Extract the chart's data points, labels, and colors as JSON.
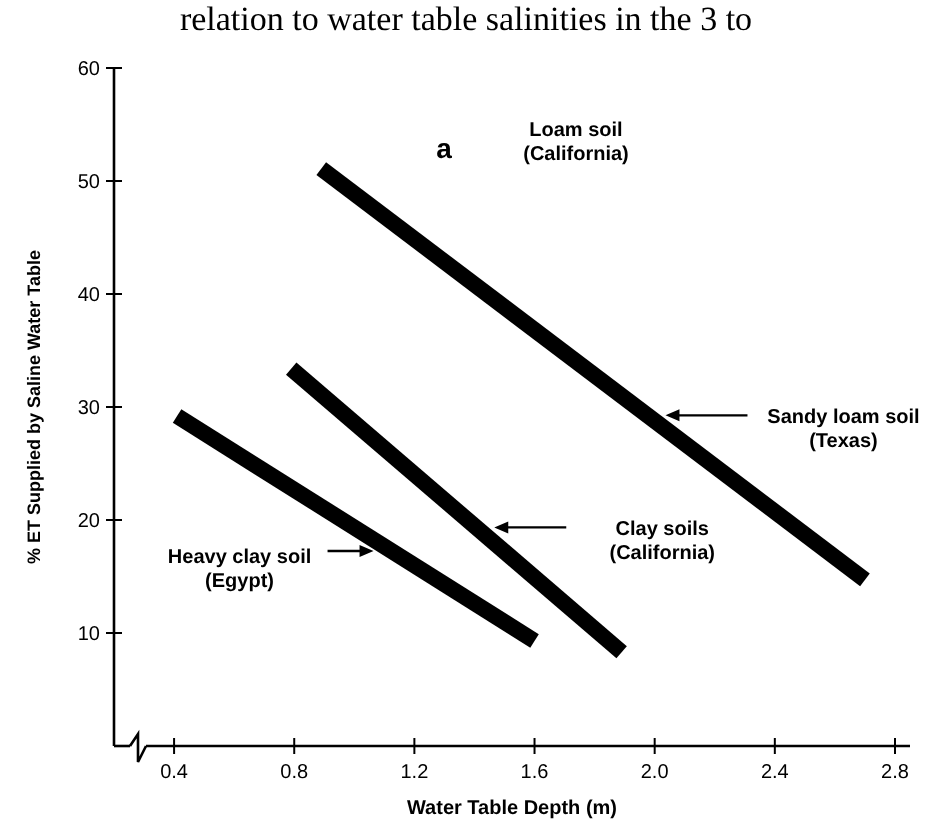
{
  "chart_data": {
    "type": "line",
    "title": "relation to water table salinities in the 3 to",
    "xlabel": "Water Table Depth (m)",
    "ylabel": "% ET Supplied by Saline Water Table",
    "xlim": [
      0.2,
      2.85
    ],
    "ylim": [
      0,
      60
    ],
    "xticks": [
      {
        "value": 0.4,
        "label": "0.4"
      },
      {
        "value": 0.8,
        "label": "0.8"
      },
      {
        "value": 1.2,
        "label": "1.2"
      },
      {
        "value": 1.6,
        "label": "1.6"
      },
      {
        "value": 2.0,
        "label": "2.0"
      },
      {
        "value": 2.4,
        "label": "2.4"
      },
      {
        "value": 2.8,
        "label": "2.8"
      }
    ],
    "yticks": [
      10,
      20,
      30,
      40,
      50,
      60
    ],
    "grid": false,
    "legend": "right",
    "marker": "none",
    "line_style": "solid",
    "annotations": [
      "a",
      "Loam soil\n(California)"
    ],
    "series": [
      {
        "name": "Sandy loam soil\n(Texas)",
        "color": "#000000",
        "x": [
          0.89,
          2.7
        ],
        "values": [
          51.1,
          14.7
        ]
      },
      {
        "name": "Clay soils\n(California)",
        "color": "#000000",
        "x": [
          0.79,
          1.89
        ],
        "values": [
          33.4,
          8.3
        ]
      },
      {
        "name": "Heavy clay soil\n(Egypt)",
        "color": "#000000",
        "x": [
          0.41,
          1.6
        ],
        "values": [
          29.2,
          9.3
        ]
      }
    ]
  }
}
